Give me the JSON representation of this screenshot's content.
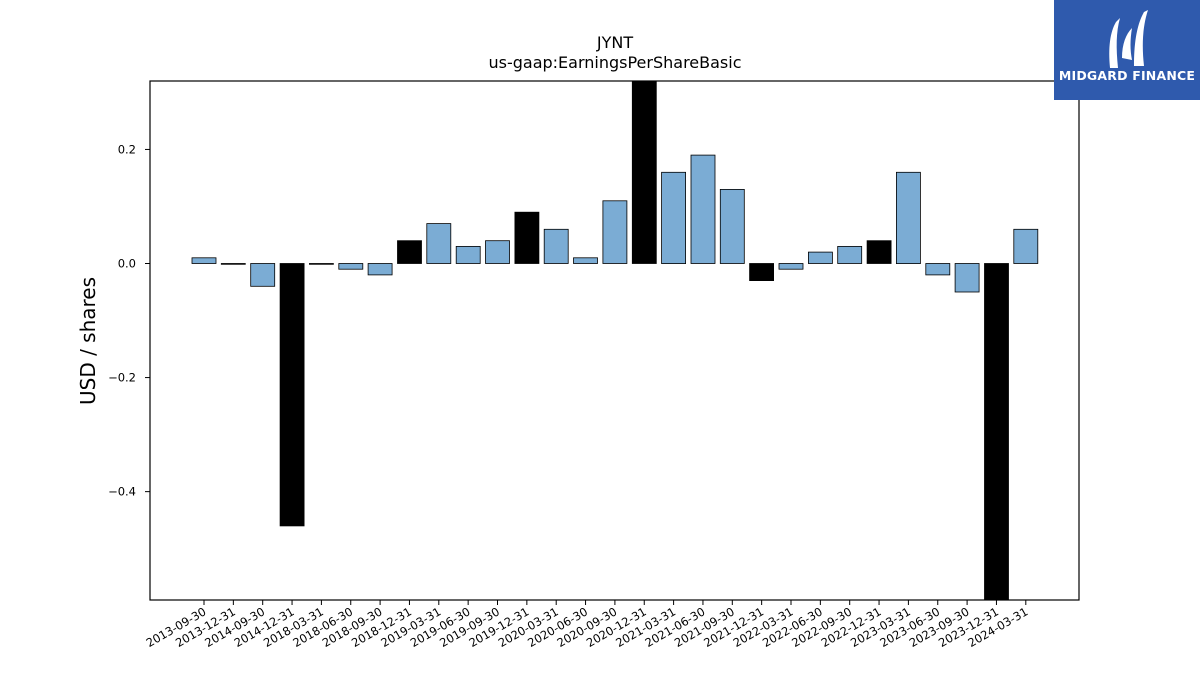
{
  "chart_data": {
    "type": "bar",
    "title": "JYNT",
    "subtitle": "us-gaap:EarningsPerShareBasic",
    "ylabel": "USD / shares",
    "xlabel": "",
    "ylim": [
      -0.59,
      0.32
    ],
    "yticks": [
      -0.4,
      -0.2,
      0.0,
      0.2
    ],
    "ytick_labels": [
      "−0.4",
      "−0.2",
      "0.0",
      "0.2"
    ],
    "categories": [
      "2013-09-30",
      "2013-12-31",
      "2014-09-30",
      "2014-12-31",
      "2018-03-31",
      "2018-06-30",
      "2018-09-30",
      "2018-12-31",
      "2019-03-31",
      "2019-06-30",
      "2019-09-30",
      "2019-12-31",
      "2020-03-31",
      "2020-06-30",
      "2020-09-30",
      "2020-12-31",
      "2021-03-31",
      "2021-06-30",
      "2021-09-30",
      "2021-12-31",
      "2022-03-31",
      "2022-06-30",
      "2022-09-30",
      "2022-12-31",
      "2023-03-31",
      "2023-06-30",
      "2023-09-30",
      "2023-12-31",
      "2024-03-31"
    ],
    "values": [
      0.01,
      0.0,
      -0.04,
      -0.46,
      0.0,
      -0.01,
      -0.02,
      0.04,
      0.07,
      0.03,
      0.04,
      0.09,
      0.06,
      0.01,
      0.11,
      0.33,
      0.16,
      0.19,
      0.13,
      -0.03,
      -0.01,
      0.02,
      0.03,
      0.04,
      0.16,
      -0.02,
      -0.05,
      -0.6,
      0.06
    ],
    "bar_kind": [
      "q",
      "q",
      "q",
      "a",
      "q",
      "q",
      "q",
      "a",
      "q",
      "q",
      "q",
      "a",
      "q",
      "q",
      "q",
      "a",
      "q",
      "q",
      "q",
      "a",
      "q",
      "q",
      "q",
      "a",
      "q",
      "q",
      "q",
      "a",
      "q"
    ],
    "colors": {
      "quarter": "#7bacd4",
      "annual": "#000000",
      "edge": "#000000"
    },
    "grid": false,
    "legend": "none"
  },
  "logo": {
    "text": "MIDGARD FINANCE",
    "color": "#2f5aad"
  }
}
